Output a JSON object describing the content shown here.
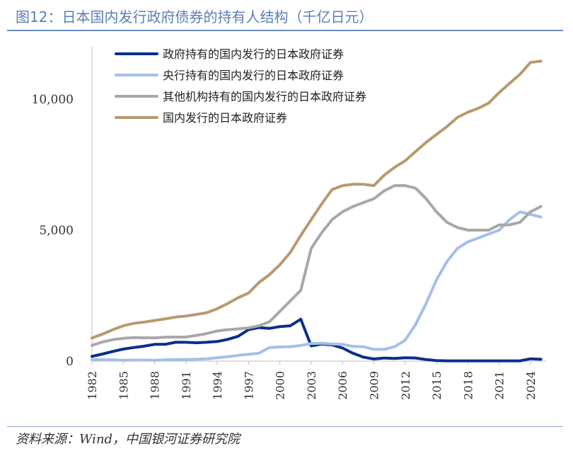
{
  "title": "图12：日本国内发行政府债券的持有人结构（千亿日元）",
  "source": "资料来源：Wind，中国银河证券研究院",
  "chart_data": {
    "type": "line",
    "title": "图12：日本国内发行政府债券的持有人结构（千亿日元）",
    "xlabel": "",
    "ylabel": "",
    "ylim": [
      0,
      12000
    ],
    "xlim": [
      1982,
      2025.5
    ],
    "yticks": [
      0,
      5000,
      10000
    ],
    "ytick_labels": [
      "0",
      "5,000",
      "10,000"
    ],
    "xticks": [
      1982,
      1985,
      1988,
      1991,
      1994,
      1997,
      2000,
      2003,
      2006,
      2009,
      2012,
      2015,
      2018,
      2021,
      2024
    ],
    "x": [
      1982,
      1983,
      1984,
      1985,
      1986,
      1987,
      1988,
      1989,
      1990,
      1991,
      1992,
      1993,
      1994,
      1995,
      1996,
      1997,
      1998,
      1999,
      2000,
      2001,
      2002,
      2003,
      2004,
      2005,
      2006,
      2007,
      2008,
      2009,
      2010,
      2011,
      2012,
      2013,
      2014,
      2015,
      2016,
      2017,
      2018,
      2019,
      2020,
      2021,
      2022,
      2023,
      2024,
      2025
    ],
    "series": [
      {
        "name": "政府持有的国内发行的日本政府证券",
        "color": "#0a2f8a",
        "values": [
          180,
          270,
          370,
          460,
          520,
          570,
          640,
          640,
          720,
          720,
          700,
          720,
          750,
          830,
          950,
          1200,
          1280,
          1250,
          1320,
          1350,
          1600,
          580,
          650,
          620,
          500,
          300,
          150,
          80,
          120,
          100,
          130,
          120,
          60,
          20,
          10,
          10,
          10,
          10,
          10,
          10,
          10,
          10,
          90,
          70
        ]
      },
      {
        "name": "央行持有的国内发行的日本政府证券",
        "color": "#a5bfe8",
        "values": [
          60,
          50,
          50,
          30,
          40,
          40,
          30,
          50,
          60,
          60,
          70,
          90,
          130,
          170,
          220,
          260,
          300,
          520,
          540,
          550,
          600,
          670,
          680,
          650,
          640,
          560,
          550,
          450,
          450,
          550,
          800,
          1400,
          2200,
          3100,
          3800,
          4300,
          4550,
          4700,
          4850,
          5000,
          5400,
          5700,
          5600,
          5500
        ]
      },
      {
        "name": "其他机构持有的国内发行的日本政府证券",
        "color": "#a8a8a8",
        "values": [
          600,
          730,
          820,
          870,
          900,
          890,
          890,
          910,
          920,
          920,
          980,
          1050,
          1150,
          1200,
          1230,
          1270,
          1350,
          1500,
          1900,
          2300,
          2700,
          4300,
          4900,
          5400,
          5700,
          5900,
          6050,
          6200,
          6500,
          6700,
          6700,
          6600,
          6200,
          5700,
          5300,
          5100,
          5000,
          5000,
          5000,
          5200,
          5200,
          5300,
          5700,
          5900
        ]
      },
      {
        "name": "国内发行的日本政府证券",
        "color": "#b89a6e",
        "values": [
          880,
          1030,
          1200,
          1350,
          1440,
          1490,
          1550,
          1610,
          1680,
          1720,
          1780,
          1850,
          2000,
          2200,
          2420,
          2600,
          3000,
          3300,
          3680,
          4150,
          4800,
          5400,
          6000,
          6550,
          6700,
          6750,
          6750,
          6700,
          7100,
          7400,
          7650,
          8000,
          8350,
          8650,
          8950,
          9300,
          9500,
          9650,
          9850,
          10250,
          10600,
          10950,
          11400,
          11450
        ]
      }
    ]
  }
}
